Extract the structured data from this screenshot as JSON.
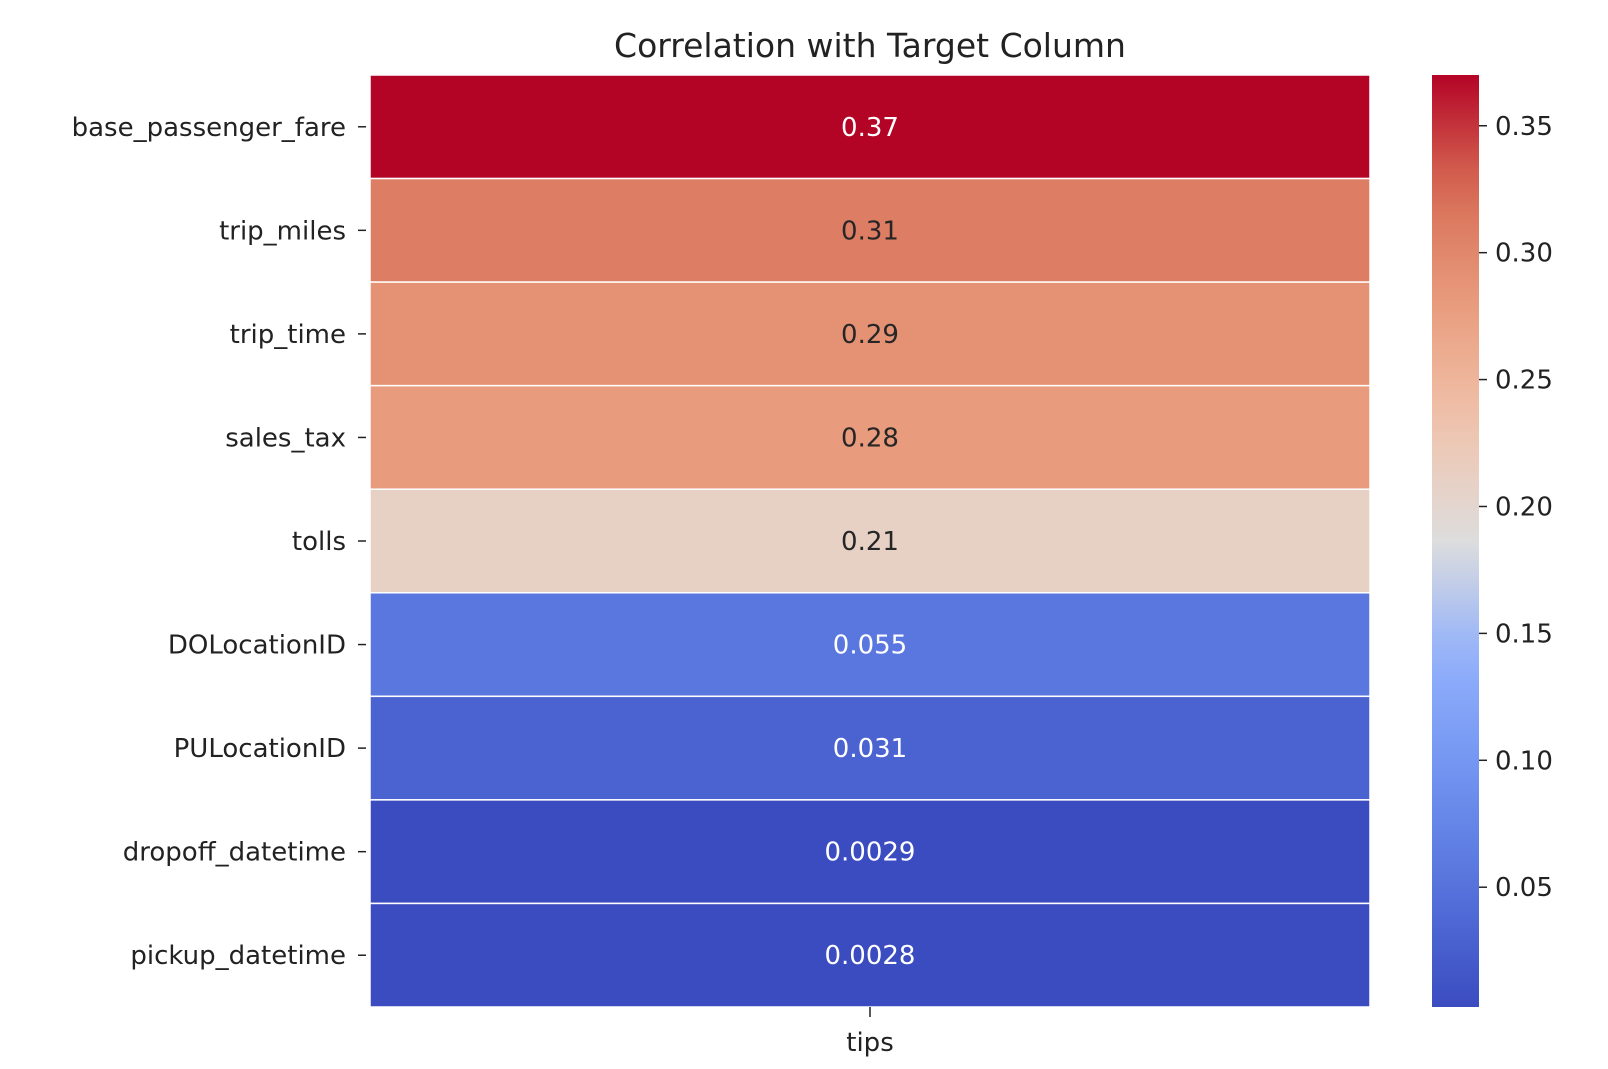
{
  "chart_data": {
    "type": "heatmap",
    "title": "Correlation with Target Column",
    "columns": [
      "tips"
    ],
    "rows": [
      "base_passenger_fare",
      "trip_miles",
      "trip_time",
      "sales_tax",
      "tolls",
      "DOLocationID",
      "PULocationID",
      "dropoff_datetime",
      "pickup_datetime"
    ],
    "values": [
      0.37,
      0.31,
      0.29,
      0.28,
      0.21,
      0.055,
      0.031,
      0.0029,
      0.0028
    ],
    "annotations": [
      "0.37",
      "0.31",
      "0.29",
      "0.28",
      "0.21",
      "0.055",
      "0.031",
      "0.0029",
      "0.0028"
    ],
    "colormap": "coolwarm",
    "vmin": 0.0028,
    "vmax": 0.37,
    "colorbar": {
      "ticks": [
        0.35,
        0.3,
        0.25,
        0.2,
        0.15,
        0.1,
        0.05
      ],
      "tick_labels": [
        "0.35",
        "0.30",
        "0.25",
        "0.20",
        "0.15",
        "0.10",
        "0.05"
      ]
    },
    "grid": false,
    "cell_separator_color": "#ffffff"
  }
}
